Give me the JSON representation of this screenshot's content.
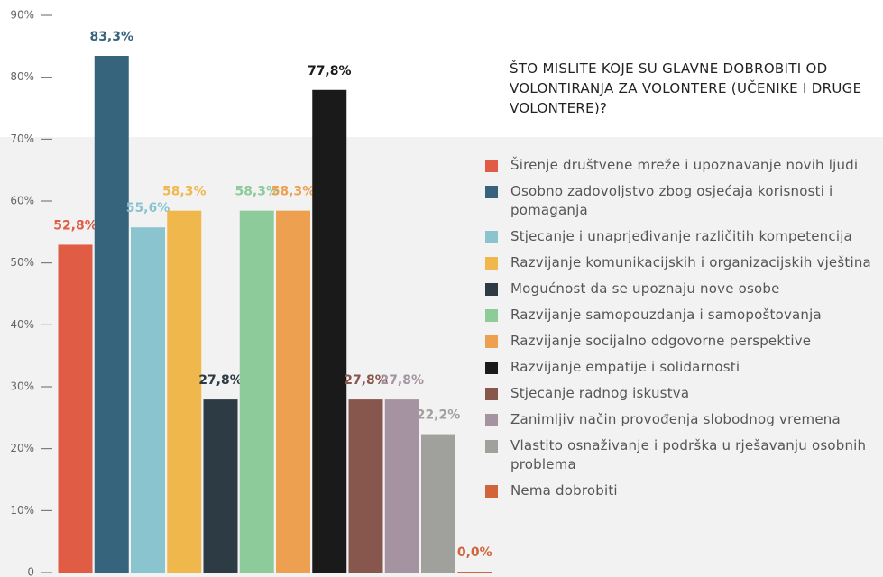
{
  "chart_data": {
    "type": "bar",
    "title": "ŠTO MISLITE KOJE SU GLAVNE DOBROBITI OD VOLONTIRANJA ZA VOLONTERE (UČENIKE I DRUGE VOLONTERE)?",
    "categories": [
      "Širenje društvene mreže i upoznavanje novih ljudi",
      "Osobno zadovoljstvo zbog osjećaja korisnosti i pomaganja",
      "Stjecanje i unaprjeđivanje različitih kompetencija",
      "Razvijanje komunikacijskih i organizacijskih vještina",
      "Mogućnost da se upoznaju nove osobe",
      "Razvijanje samopouzdanja i samopoštovanja",
      "Razvijanje socijalno odgovorne perspektive",
      "Razvijanje empatije i solidarnosti",
      "Stjecanje radnog iskustva",
      "Zanimljiv način provođenja slobodnog vremena",
      "Vlastito osnaživanje i podrška u rješavanju osobnih problema",
      "Nema dobrobiti"
    ],
    "values": [
      52.8,
      83.3,
      55.6,
      58.3,
      27.8,
      58.3,
      58.3,
      77.8,
      27.8,
      27.8,
      22.2,
      0.0
    ],
    "value_labels": [
      "52,8%",
      "83,3%",
      "55,6%",
      "58,3%",
      "27,8%",
      "58,3%",
      "58,3%",
      "77,8%",
      "27,8%",
      "27,8%",
      "22,2%",
      "0,0%"
    ],
    "colors": [
      "#e05c44",
      "#35647c",
      "#8ac4cf",
      "#f0b84c",
      "#2d3b44",
      "#8ecb9a",
      "#eda050",
      "#1a1a1a",
      "#87564c",
      "#a593a2",
      "#a0a09c",
      "#d2643c"
    ],
    "ylim": [
      0,
      90
    ],
    "yticks": [
      0,
      {
        "value": 10,
        "label": "10%"
      },
      {
        "value": 20,
        "label": "20%"
      },
      {
        "value": 30,
        "label": "30%"
      },
      {
        "value": 40,
        "label": "40%"
      },
      {
        "value": 50,
        "label": "50%"
      },
      {
        "value": 60,
        "label": "60%"
      },
      {
        "value": 70,
        "label": "70%"
      },
      {
        "value": 80,
        "label": "80%"
      },
      {
        "value": 90,
        "label": "90%"
      }
    ]
  }
}
